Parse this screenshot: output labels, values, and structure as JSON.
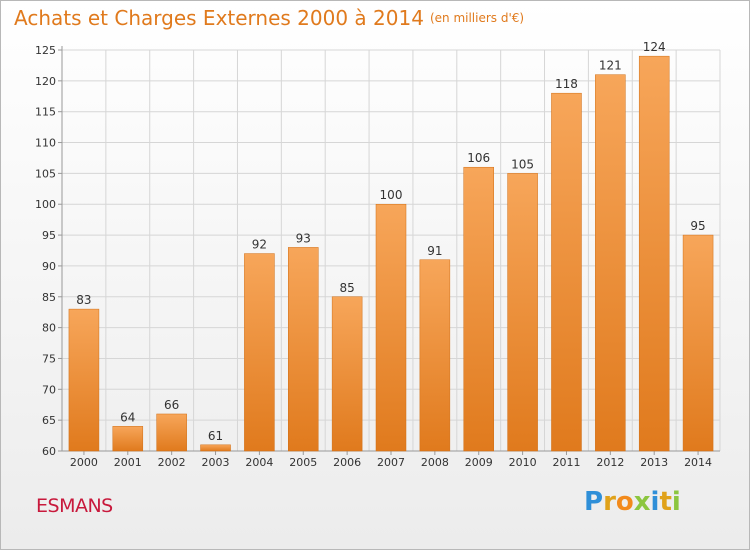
{
  "title": "Achats et Charges Externes 2000 à 2014",
  "subtitle": "(en milliers d'€)",
  "town": "ESMANS",
  "logo": {
    "text": "Proxiti",
    "letters": [
      {
        "ch": "P",
        "color": "#2f8fd8"
      },
      {
        "ch": "r",
        "color": "#e0a21a"
      },
      {
        "ch": "o",
        "color": "#f28a1c"
      },
      {
        "ch": "x",
        "color": "#8cc63f"
      },
      {
        "ch": "i",
        "color": "#2f8fd8"
      },
      {
        "ch": "t",
        "color": "#e0a21a"
      },
      {
        "ch": "i",
        "color": "#8cc63f"
      }
    ]
  },
  "colors": {
    "title": "#e07a1d",
    "bar_light": "#f7a65a",
    "bar_dark": "#e07a1d",
    "town": "#c8193c",
    "grid": "#d6d6d6"
  },
  "chart_data": {
    "type": "bar",
    "categories": [
      "2000",
      "2001",
      "2002",
      "2003",
      "2004",
      "2005",
      "2006",
      "2007",
      "2008",
      "2009",
      "2010",
      "2011",
      "2012",
      "2013",
      "2014"
    ],
    "values": [
      83,
      64,
      66,
      61,
      92,
      93,
      85,
      100,
      91,
      106,
      105,
      118,
      121,
      124,
      95
    ],
    "title": "Achats et Charges Externes 2000 à 2014",
    "xlabel": "",
    "ylabel": "",
    "ylim": [
      60,
      125
    ],
    "yticks": [
      60,
      65,
      70,
      75,
      80,
      85,
      90,
      95,
      100,
      105,
      110,
      115,
      120,
      125
    ],
    "grid": true,
    "data_labels": true
  }
}
